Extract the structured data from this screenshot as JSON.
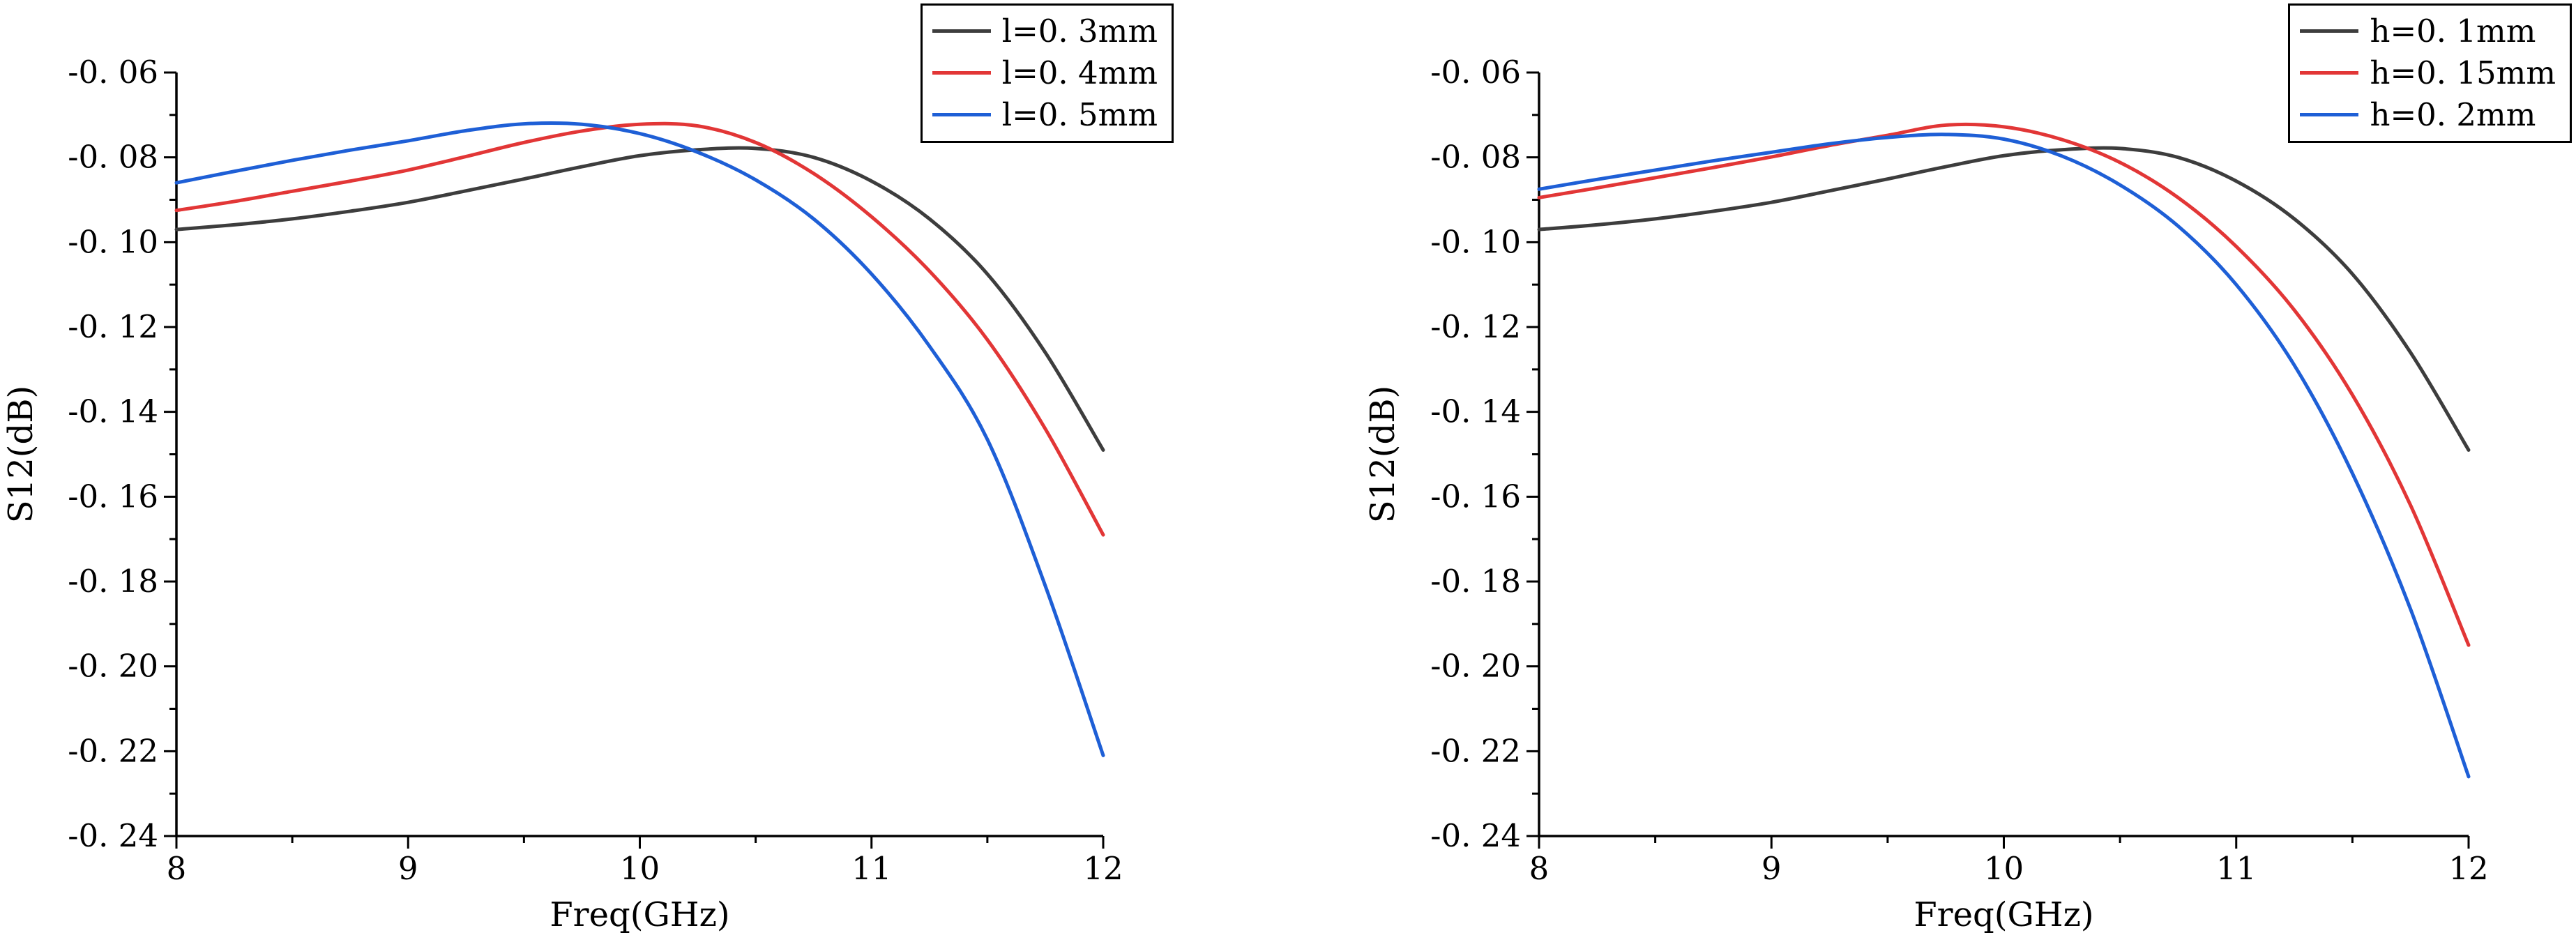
{
  "figure": {
    "background": "#ffffff"
  },
  "chart_data": [
    {
      "type": "line",
      "title": "",
      "xlabel": "Freq(GHz)",
      "ylabel": "S12(dB)",
      "xlim": [
        8,
        12
      ],
      "ylim": [
        -0.24,
        -0.06
      ],
      "grid": false,
      "legend_position": "top-right",
      "x_ticks": [
        8,
        9,
        10,
        11,
        12
      ],
      "x_tick_labels": [
        "8",
        "9",
        "10",
        "11",
        "12"
      ],
      "x_minor_ticks": [
        8.5,
        9.5,
        10.5,
        11.5
      ],
      "y_ticks": [
        -0.06,
        -0.08,
        -0.1,
        -0.12,
        -0.14,
        -0.16,
        -0.18,
        -0.2,
        -0.22,
        -0.24
      ],
      "y_tick_labels": [
        "-0. 06",
        "-0. 08",
        "-0. 10",
        "-0. 12",
        "-0. 14",
        "-0. 16",
        "-0. 18",
        "-0. 20",
        "-0. 22",
        "-0. 24"
      ],
      "x": [
        8,
        8.25,
        8.5,
        8.75,
        9,
        9.25,
        9.5,
        9.75,
        10,
        10.25,
        10.5,
        10.75,
        11,
        11.25,
        11.5,
        11.75,
        12
      ],
      "series": [
        {
          "name": "l=0. 3mm",
          "color": "#3d3d3d",
          "values": [
            -0.097,
            -0.0959,
            -0.0945,
            -0.0927,
            -0.0906,
            -0.0879,
            -0.0851,
            -0.0822,
            -0.0796,
            -0.0782,
            -0.0779,
            -0.08,
            -0.0856,
            -0.0945,
            -0.1075,
            -0.126,
            -0.149
          ]
        },
        {
          "name": "l=0. 4mm",
          "color": "#e23636",
          "values": [
            -0.0925,
            -0.0904,
            -0.088,
            -0.0856,
            -0.083,
            -0.0798,
            -0.0765,
            -0.0738,
            -0.0722,
            -0.0726,
            -0.0765,
            -0.0838,
            -0.094,
            -0.1068,
            -0.123,
            -0.144,
            -0.169
          ]
        },
        {
          "name": "l=0. 5mm",
          "color": "#1e5fd6",
          "values": [
            -0.086,
            -0.0833,
            -0.0807,
            -0.0783,
            -0.0761,
            -0.0737,
            -0.0721,
            -0.0722,
            -0.0744,
            -0.0788,
            -0.0853,
            -0.0945,
            -0.1075,
            -0.1245,
            -0.1465,
            -0.181,
            -0.221
          ]
        }
      ]
    },
    {
      "type": "line",
      "title": "",
      "xlabel": "Freq(GHz)",
      "ylabel": "S12(dB)",
      "xlim": [
        8,
        12
      ],
      "ylim": [
        -0.24,
        -0.06
      ],
      "grid": false,
      "legend_position": "top-right",
      "x_ticks": [
        8,
        9,
        10,
        11,
        12
      ],
      "x_tick_labels": [
        "8",
        "9",
        "10",
        "11",
        "12"
      ],
      "x_minor_ticks": [
        8.5,
        9.5,
        10.5,
        11.5
      ],
      "y_ticks": [
        -0.06,
        -0.08,
        -0.1,
        -0.12,
        -0.14,
        -0.16,
        -0.18,
        -0.2,
        -0.22,
        -0.24
      ],
      "y_tick_labels": [
        "-0. 06",
        "-0. 08",
        "-0. 10",
        "-0. 12",
        "-0. 14",
        "-0. 16",
        "-0. 18",
        "-0. 20",
        "-0. 22",
        "-0. 24"
      ],
      "x": [
        8,
        8.25,
        8.5,
        8.75,
        9,
        9.25,
        9.5,
        9.75,
        10,
        10.25,
        10.5,
        10.75,
        11,
        11.25,
        11.5,
        11.75,
        12
      ],
      "series": [
        {
          "name": "h=0. 1mm",
          "color": "#3d3d3d",
          "values": [
            -0.097,
            -0.0959,
            -0.0945,
            -0.0927,
            -0.0906,
            -0.0879,
            -0.0851,
            -0.0822,
            -0.0796,
            -0.0782,
            -0.0779,
            -0.08,
            -0.0856,
            -0.0945,
            -0.1075,
            -0.126,
            -0.149
          ]
        },
        {
          "name": "h=0. 15mm",
          "color": "#e23636",
          "values": [
            -0.0895,
            -0.0872,
            -0.0848,
            -0.0824,
            -0.0799,
            -0.0772,
            -0.0748,
            -0.0724,
            -0.0728,
            -0.0758,
            -0.0812,
            -0.0895,
            -0.101,
            -0.116,
            -0.136,
            -0.162,
            -0.195
          ]
        },
        {
          "name": "h=0. 2mm",
          "color": "#1e5fd6",
          "values": [
            -0.0875,
            -0.0852,
            -0.083,
            -0.0808,
            -0.0788,
            -0.0768,
            -0.0753,
            -0.0746,
            -0.0757,
            -0.0797,
            -0.0865,
            -0.0962,
            -0.11,
            -0.129,
            -0.1545,
            -0.1865,
            -0.226
          ]
        }
      ]
    }
  ]
}
